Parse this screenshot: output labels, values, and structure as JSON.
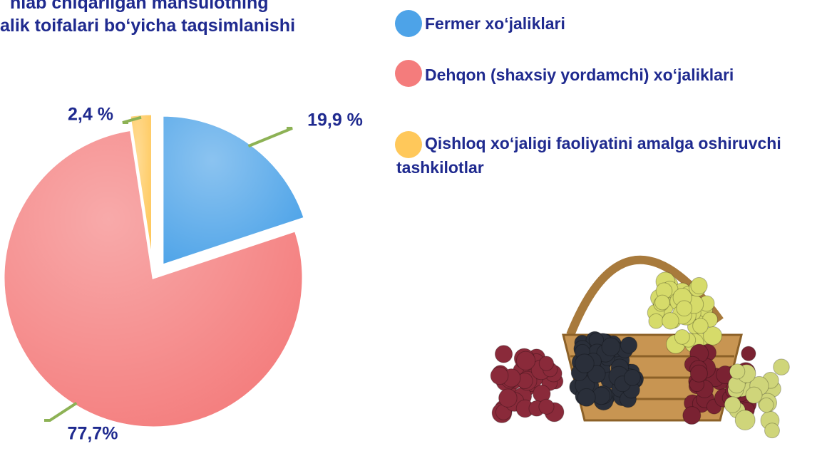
{
  "chart_data": {
    "type": "pie",
    "title": [
      "hlab chiqarilgan mahsulotning",
      "alik toifalari bo‘yicha taqsimlanishi"
    ],
    "categories": [
      "Fermer xo‘jaliklari",
      "Dehqon (shaxsiy yordamchi) xo‘jaliklari",
      "Qishloq xo‘jaligi faoliyatini amalga oshiruvchi tashkilotlar"
    ],
    "values": [
      19.9,
      77.7,
      2.4
    ],
    "value_labels": [
      "19,9 %",
      "77,7%",
      "2,4 %"
    ],
    "colors": [
      "#4da3e8",
      "#f47c7c",
      "#ffc85a"
    ]
  }
}
